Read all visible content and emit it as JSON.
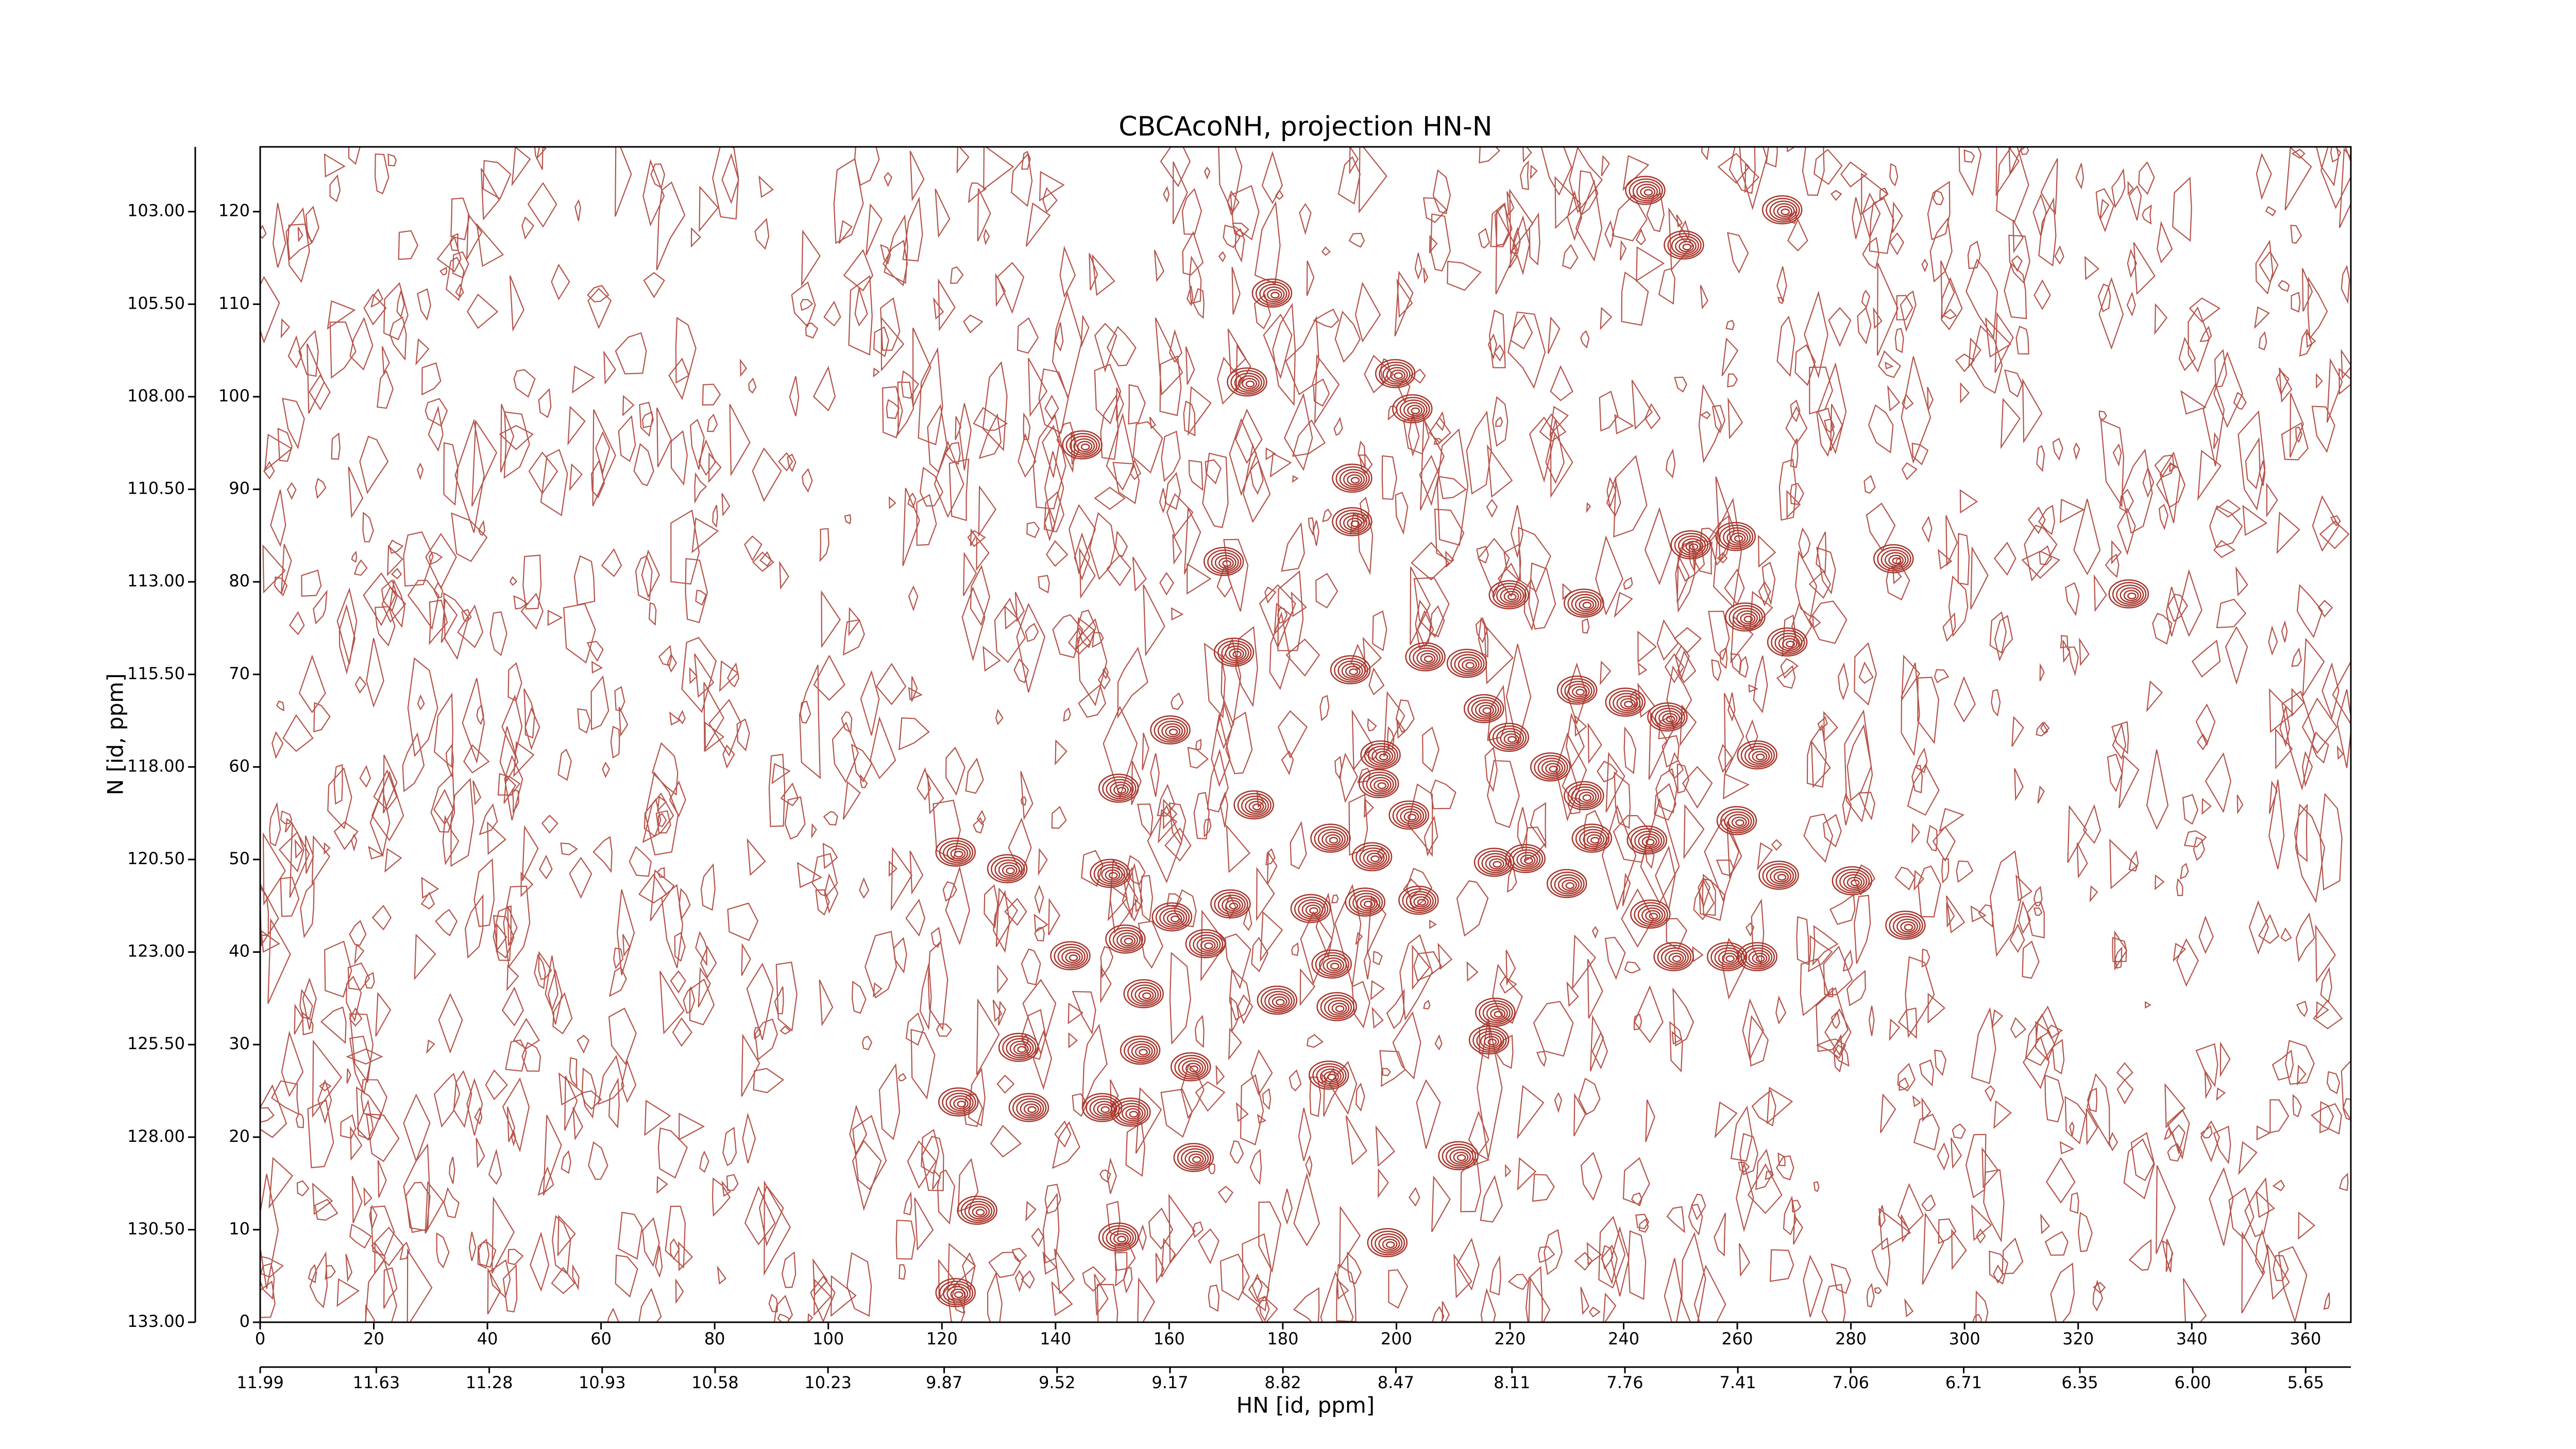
{
  "chart_data": {
    "type": "contour",
    "title": "CBCAcoNH, projection HN-N",
    "xlabel": "HN [id, ppm]",
    "ylabel": "N [id, ppm]",
    "color": "#a8362c",
    "x": [
      243.8,
      267.9,
      250.6,
      178.1,
      199.8,
      173.7,
      202.8,
      144.7,
      192.2,
      192.2,
      169.6,
      287.5,
      251.8,
      259.7,
      219.8,
      233.0,
      328.9,
      261.4,
      268.8,
      171.4,
      205.1,
      191.9,
      212.4,
      215.4,
      219.8,
      160.2,
      231.8,
      240.3,
      247.7,
      197.2,
      263.5,
      227.1,
      151.1,
      196.9,
      174.9,
      202.2,
      233.0,
      259.9,
      234.4,
      244.1,
      188.4,
      195.7,
      122.4,
      131.5,
      149.6,
      217.2,
      222.7,
      230.0,
      267.3,
      280.2,
      170.8,
      184.9,
      194.5,
      203.9,
      160.5,
      244.7,
      289.6,
      152.3,
      166.4,
      142.6,
      188.6,
      248.8,
      258.2,
      263.5,
      155.5,
      179.0,
      189.5,
      217.4,
      133.5,
      154.9,
      216.3,
      163.8,
      188.1,
      122.9,
      135.3,
      148.2,
      153.2,
      164.3,
      210.9,
      126.2,
      151.1,
      198.4,
      122.4
    ],
    "y": [
      122.3,
      120.2,
      116.4,
      111.2,
      102.5,
      101.6,
      98.7,
      94.8,
      91.2,
      86.5,
      82.2,
      82.5,
      84.0,
      84.9,
      78.6,
      77.7,
      78.7,
      76.2,
      73.5,
      72.4,
      71.9,
      70.5,
      71.2,
      66.3,
      63.2,
      64.0,
      68.3,
      67.0,
      65.4,
      61.3,
      61.3,
      60.0,
      57.7,
      58.2,
      55.9,
      54.8,
      56.9,
      54.2,
      52.3,
      52.1,
      52.3,
      50.3,
      50.8,
      49.0,
      48.5,
      49.7,
      50.1,
      47.4,
      48.3,
      47.7,
      45.2,
      44.7,
      45.4,
      45.6,
      43.8,
      44.1,
      42.9,
      41.4,
      40.9,
      39.6,
      38.7,
      39.5,
      39.5,
      39.5,
      35.5,
      34.8,
      34.1,
      33.5,
      29.7,
      29.4,
      30.5,
      27.6,
      26.7,
      23.8,
      23.2,
      23.2,
      22.7,
      17.8,
      18.0,
      12.1,
      9.2,
      8.6,
      3.2
    ],
    "xlim": [
      0,
      368
    ],
    "xticks": [
      0,
      20,
      40,
      60,
      80,
      100,
      120,
      140,
      160,
      180,
      200,
      220,
      240,
      260,
      280,
      300,
      320,
      340,
      360
    ],
    "x2lim": [
      11.99,
      5.51
    ],
    "x2ticks": [
      11.99,
      11.63,
      11.28,
      10.93,
      10.58,
      10.23,
      9.87,
      9.52,
      9.17,
      8.82,
      8.47,
      8.11,
      7.76,
      7.41,
      7.06,
      6.71,
      6.35,
      {
        "value": 6.0,
        "label": "6.00"
      },
      5.65
    ],
    "ylim": [
      0,
      127
    ],
    "yticks": [
      0,
      10,
      20,
      30,
      40,
      50,
      60,
      70,
      80,
      90,
      100,
      110,
      120
    ],
    "y2lim": [
      133,
      101.25
    ],
    "y2ticks": [
      {
        "value": 103,
        "label": "103.00"
      },
      {
        "value": 105.5,
        "label": "105.50"
      },
      {
        "value": 108,
        "label": "108.00"
      },
      {
        "value": 110.5,
        "label": "110.50"
      },
      {
        "value": 113,
        "label": "113.00"
      },
      {
        "value": 115.5,
        "label": "115.50"
      },
      {
        "value": 118,
        "label": "118.00"
      },
      {
        "value": 120.5,
        "label": "120.50"
      },
      {
        "value": 123,
        "label": "123.00"
      },
      {
        "value": 125.5,
        "label": "125.50"
      },
      {
        "value": 128,
        "label": "128.00"
      },
      {
        "value": 130.5,
        "label": "130.50"
      },
      {
        "value": 133,
        "label": "133.00"
      }
    ]
  }
}
